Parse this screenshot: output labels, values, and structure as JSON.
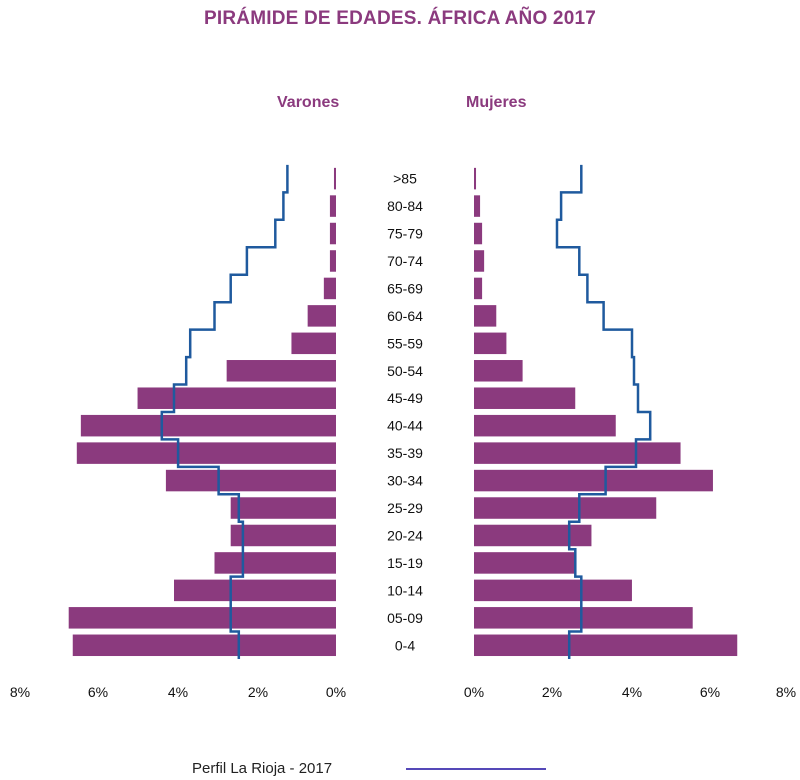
{
  "chart_data": {
    "type": "bar",
    "title": "PIRÁMIDE DE EDADES. ÁFRICA AÑO 2017",
    "left_label": "Varones",
    "right_label": "Mujeres",
    "categories": [
      "0-4",
      "05-09",
      "10-14",
      "15-19",
      "20-24",
      "25-29",
      "30-34",
      "35-39",
      "40-44",
      "45-49",
      "50-54",
      "55-59",
      "60-64",
      "65-69",
      "70-74",
      "75-79",
      "80-84",
      ">85"
    ],
    "series": [
      {
        "name": "Varones",
        "values": [
          6.5,
          6.6,
          4.0,
          3.0,
          2.6,
          2.6,
          4.2,
          6.4,
          6.3,
          4.9,
          2.7,
          1.1,
          0.7,
          0.3,
          0.15,
          0.15,
          0.15,
          0.05
        ]
      },
      {
        "name": "Mujeres",
        "values": [
          6.5,
          5.4,
          3.9,
          2.5,
          2.9,
          4.5,
          5.9,
          5.1,
          3.5,
          2.5,
          1.2,
          0.8,
          0.55,
          0.2,
          0.25,
          0.2,
          0.15,
          0.05
        ]
      },
      {
        "name": "Perfil La Rioja - 2017 (Varones)",
        "values": [
          2.4,
          2.6,
          2.6,
          2.3,
          2.3,
          2.4,
          2.9,
          3.9,
          4.3,
          4.0,
          3.7,
          3.6,
          3.0,
          2.6,
          2.2,
          1.5,
          1.3,
          1.2
        ]
      },
      {
        "name": "Perfil La Rioja - 2017 (Mujeres)",
        "values": [
          2.35,
          2.65,
          2.65,
          2.5,
          2.35,
          2.6,
          3.25,
          4.0,
          4.35,
          4.05,
          3.95,
          3.9,
          3.2,
          2.8,
          2.6,
          2.05,
          2.15,
          2.65
        ]
      }
    ],
    "x_ticks": [
      "8%",
      "6%",
      "4%",
      "2%",
      "0%",
      "0%",
      "2%",
      "4%",
      "6%",
      "8%"
    ],
    "xlim": [
      0,
      8
    ],
    "legend": {
      "label": "Perfil La Rioja - 2017",
      "position": "bottom"
    },
    "colors": {
      "bar": "#8b3a7e",
      "profile": "#1f5a9e",
      "title": "#8b3a7e",
      "legend_line": "#5548b8"
    }
  }
}
